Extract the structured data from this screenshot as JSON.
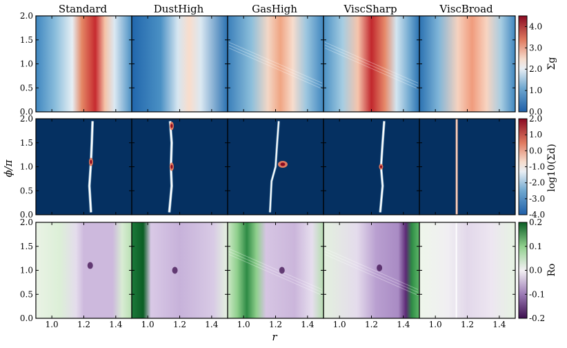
{
  "chart_data": {
    "type": "heatmap",
    "columns": [
      "Standard",
      "DustHigh",
      "GasHigh",
      "ViscSharp",
      "ViscBroad"
    ],
    "xlabel": "r",
    "ylabel": "ϕ/π",
    "xlim": [
      0.9,
      1.5
    ],
    "ylim": [
      0.0,
      2.0
    ],
    "x_ticks": [
      "1.0",
      "1.2",
      "1.4"
    ],
    "y_ticks": [
      "0.0",
      "0.5",
      "1.0",
      "1.5",
      "2.0"
    ],
    "rows": [
      {
        "quantity": "gas surface density",
        "colorbar_label": "Σg",
        "colorbar_range": [
          0.0,
          4.5
        ],
        "colorbar_ticks": [
          "0.0",
          "1.0",
          "2.0",
          "3.0",
          "4.0"
        ],
        "colormap": "RdBu_r"
      },
      {
        "quantity": "dust surface density",
        "colorbar_label": "log10(Σd)",
        "colorbar_range": [
          -4.0,
          2.0
        ],
        "colorbar_ticks": [
          "-4.0",
          "-3.0",
          "-2.0",
          "-1.0",
          "0.0",
          "1.0",
          "2.0"
        ],
        "colormap": "RdBu_r"
      },
      {
        "quantity": "Rossby number",
        "colorbar_label": "Ro",
        "colorbar_range": [
          -0.2,
          0.2
        ],
        "colorbar_ticks": [
          "-0.2",
          "-0.1",
          "0.0",
          "0.1",
          "0.2"
        ],
        "colormap": "PRGn"
      }
    ]
  }
}
